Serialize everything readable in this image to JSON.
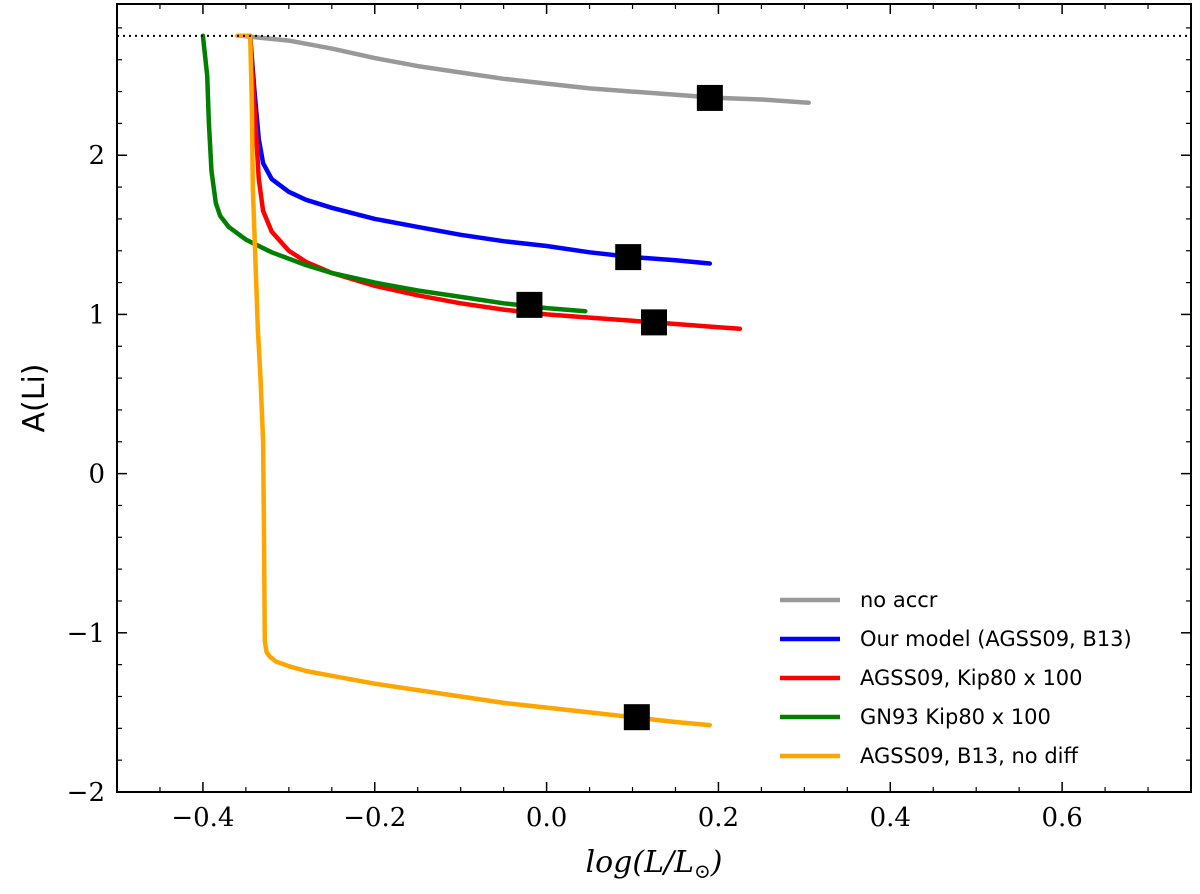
{
  "chart_data": {
    "type": "line",
    "title": "",
    "xlabel": "log(L/L⊙)",
    "ylabel": "A(Li)",
    "xlim": [
      -0.5,
      0.75
    ],
    "ylim": [
      -2,
      2.95
    ],
    "xticks": [
      -0.4,
      -0.2,
      0.0,
      0.2,
      0.4,
      0.6
    ],
    "xtick_labels": [
      "−0.4",
      "−0.2",
      "0.0",
      "0.2",
      "0.4",
      "0.6"
    ],
    "yticks": [
      -2,
      -1,
      0,
      1,
      2
    ],
    "ytick_labels": [
      "−2",
      "−1",
      "0",
      "1",
      "2"
    ],
    "grid": false,
    "legend_position": "bottom-right",
    "reference_line": {
      "y": 2.75,
      "style": "dotted",
      "color": "#000000"
    },
    "series": [
      {
        "name": "no accr",
        "color": "#999999",
        "x": [
          -0.355,
          -0.3,
          -0.25,
          -0.2,
          -0.15,
          -0.1,
          -0.05,
          0.0,
          0.05,
          0.1,
          0.15,
          0.2,
          0.25,
          0.305
        ],
        "y": [
          2.75,
          2.72,
          2.67,
          2.61,
          2.56,
          2.52,
          2.48,
          2.45,
          2.42,
          2.4,
          2.38,
          2.36,
          2.35,
          2.33
        ],
        "marker": {
          "x": 0.19,
          "y": 2.36
        }
      },
      {
        "name": "Our model (AGSS09, B13)",
        "color": "#0000ff",
        "x": [
          -0.345,
          -0.34,
          -0.335,
          -0.33,
          -0.32,
          -0.3,
          -0.28,
          -0.25,
          -0.2,
          -0.15,
          -0.1,
          -0.05,
          0.0,
          0.05,
          0.1,
          0.15,
          0.19
        ],
        "y": [
          2.75,
          2.4,
          2.1,
          1.95,
          1.85,
          1.77,
          1.72,
          1.67,
          1.6,
          1.55,
          1.5,
          1.46,
          1.43,
          1.39,
          1.36,
          1.34,
          1.32
        ],
        "marker": {
          "x": 0.095,
          "y": 1.36
        }
      },
      {
        "name": "AGSS09, Kip80 x 100",
        "color": "#ff0000",
        "x": [
          -0.345,
          -0.34,
          -0.335,
          -0.33,
          -0.32,
          -0.3,
          -0.28,
          -0.25,
          -0.2,
          -0.15,
          -0.1,
          -0.05,
          0.0,
          0.05,
          0.1,
          0.15,
          0.2,
          0.225
        ],
        "y": [
          2.75,
          2.3,
          1.85,
          1.65,
          1.52,
          1.4,
          1.33,
          1.26,
          1.18,
          1.12,
          1.07,
          1.03,
          1.0,
          0.98,
          0.96,
          0.94,
          0.92,
          0.91
        ],
        "marker": {
          "x": 0.125,
          "y": 0.95
        }
      },
      {
        "name": "GN93 Kip80 x 100",
        "color": "#008000",
        "x": [
          -0.4,
          -0.395,
          -0.393,
          -0.39,
          -0.385,
          -0.38,
          -0.37,
          -0.35,
          -0.32,
          -0.28,
          -0.25,
          -0.2,
          -0.15,
          -0.1,
          -0.05,
          0.0,
          0.045
        ],
        "y": [
          2.75,
          2.5,
          2.2,
          1.9,
          1.7,
          1.62,
          1.55,
          1.47,
          1.39,
          1.31,
          1.26,
          1.2,
          1.15,
          1.11,
          1.07,
          1.04,
          1.02
        ],
        "marker": {
          "x": -0.02,
          "y": 1.06
        }
      },
      {
        "name": "AGSS09, B13, no diff",
        "color": "#ffa500",
        "x": [
          -0.36,
          -0.345,
          -0.343,
          -0.342,
          -0.34,
          -0.338,
          -0.336,
          -0.333,
          -0.33,
          -0.329,
          -0.328,
          -0.326,
          -0.322,
          -0.315,
          -0.3,
          -0.28,
          -0.25,
          -0.2,
          -0.15,
          -0.1,
          -0.05,
          0.0,
          0.05,
          0.1,
          0.15,
          0.19
        ],
        "y": [
          2.75,
          2.75,
          2.3,
          1.8,
          1.5,
          1.2,
          0.9,
          0.6,
          0.2,
          -0.3,
          -1.05,
          -1.12,
          -1.15,
          -1.18,
          -1.21,
          -1.24,
          -1.27,
          -1.32,
          -1.36,
          -1.4,
          -1.44,
          -1.47,
          -1.5,
          -1.53,
          -1.56,
          -1.58
        ],
        "marker": {
          "x": 0.105,
          "y": -1.53
        }
      }
    ]
  }
}
